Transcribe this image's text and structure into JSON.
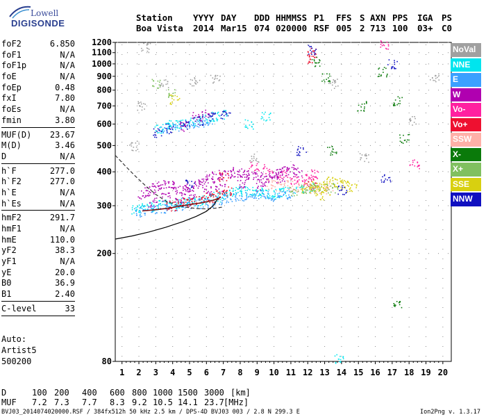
{
  "logo": {
    "top": "Lowell",
    "bottom": "DIGISONDE"
  },
  "header": {
    "labels": [
      "Station",
      "YYYY",
      "DAY",
      "DDD",
      "HHMMSS",
      "P1",
      "FFS",
      "S",
      "AXN",
      "PPS",
      "IGA",
      "PS"
    ],
    "values": [
      "Boa Vista",
      "2014",
      "Mar15",
      "074",
      "020000",
      "RSF",
      "005",
      "2",
      "713",
      "100",
      "03+",
      "C0"
    ]
  },
  "parameters": [
    {
      "label": "foF2",
      "value": "6.850"
    },
    {
      "label": "foF1",
      "value": "N/A"
    },
    {
      "label": "foF1p",
      "value": "N/A"
    },
    {
      "label": "foE",
      "value": "N/A"
    },
    {
      "label": "foEp",
      "value": "0.48"
    },
    {
      "label": "fxI",
      "value": "7.80"
    },
    {
      "label": "foEs",
      "value": "N/A"
    },
    {
      "label": "fmin",
      "value": "3.80"
    },
    {
      "sep": true
    },
    {
      "label": "MUF(D)",
      "value": "23.67"
    },
    {
      "label": "M(D)",
      "value": "3.46"
    },
    {
      "label": "D",
      "value": "N/A"
    },
    {
      "sep": true
    },
    {
      "label": "h`F",
      "value": "277.0"
    },
    {
      "label": "h`F2",
      "value": "277.0"
    },
    {
      "label": "h`E",
      "value": "N/A"
    },
    {
      "label": "h`Es",
      "value": "N/A"
    },
    {
      "sep": true
    },
    {
      "label": "hmF2",
      "value": "291.7"
    },
    {
      "label": "hmF1",
      "value": "N/A"
    },
    {
      "label": "hmE",
      "value": "110.0"
    },
    {
      "label": "yF2",
      "value": "38.3"
    },
    {
      "label": "yF1",
      "value": "N/A"
    },
    {
      "label": "yE",
      "value": "20.0"
    },
    {
      "label": "B0",
      "value": "36.9"
    },
    {
      "label": "B1",
      "value": "2.40"
    },
    {
      "sep": true
    },
    {
      "label": "C-level",
      "value": "33"
    },
    {
      "sep": true
    }
  ],
  "auto": [
    "Auto:",
    "Artist5",
    "500200"
  ],
  "legend": [
    {
      "label": "NoVal",
      "color": "#a0a0a0"
    },
    {
      "label": "NNE",
      "color": "#00e5ee"
    },
    {
      "label": "E",
      "color": "#3aa0ff"
    },
    {
      "label": "W",
      "color": "#b000b0"
    },
    {
      "label": "Vo-",
      "color": "#ff20a0"
    },
    {
      "label": "Vo+",
      "color": "#ee1030"
    },
    {
      "label": "SSW",
      "color": "#ffb0a8"
    },
    {
      "label": "X-",
      "color": "#0a7a0a"
    },
    {
      "label": "X+",
      "color": "#80c060"
    },
    {
      "label": "SSE",
      "color": "#d8d010"
    },
    {
      "label": "NNW",
      "color": "#1010c0"
    }
  ],
  "d_muf": {
    "d_label": "D",
    "d_values": [
      "100",
      "200",
      "400",
      "600",
      "800",
      "1000",
      "1500",
      "3000"
    ],
    "d_unit": "[km]",
    "muf_label": "MUF",
    "muf_values": [
      "7.2",
      "7.3",
      "7.7",
      "8.3",
      "9.2",
      "10.5",
      "14.1",
      "23.7"
    ],
    "muf_unit": "[MHz]"
  },
  "footer": "BVJ03_2014074020000.RSF / 384fx512h 50 kHz 2.5 km / DPS-4D BVJ03 003 / 2.8 N 299.3 E",
  "version": "Ion2Png v. 1.3.17",
  "chart_data": {
    "type": "scatter",
    "x_ticks": [
      1,
      2,
      3,
      4,
      5,
      6,
      7,
      8,
      9,
      10,
      11,
      12,
      13,
      14,
      15,
      16,
      17,
      18,
      19,
      20
    ],
    "y_ticks": [
      80,
      200,
      300,
      400,
      500,
      600,
      700,
      800,
      900,
      1000,
      1100,
      1200
    ],
    "xlim": [
      0.6,
      20.5
    ],
    "ylim": [
      80,
      1200
    ],
    "y_scale": "log",
    "grid": true,
    "legend_position": "right",
    "series": [
      {
        "color": "#00e5ee",
        "points": [
          [
            1.8,
            290
          ],
          [
            2.2,
            296
          ],
          [
            2.6,
            298
          ],
          [
            3,
            300
          ],
          [
            3.4,
            302
          ],
          [
            3.8,
            305
          ],
          [
            4.2,
            306
          ],
          [
            4.6,
            308
          ],
          [
            5,
            310
          ],
          [
            5.4,
            313
          ],
          [
            5.8,
            316
          ],
          [
            6.2,
            320
          ],
          [
            6.6,
            324
          ],
          [
            7,
            330
          ],
          [
            7.4,
            336
          ],
          [
            7.8,
            340
          ],
          [
            8.2,
            340
          ],
          [
            8.6,
            338
          ],
          [
            9,
            336
          ],
          [
            9.4,
            334
          ],
          [
            9.8,
            332
          ],
          [
            10.2,
            334
          ],
          [
            10.6,
            338
          ],
          [
            3.2,
            580
          ],
          [
            3.6,
            590
          ],
          [
            4,
            596
          ],
          [
            4.5,
            605
          ],
          [
            5.2,
            615
          ],
          [
            5.8,
            630
          ],
          [
            6.4,
            640
          ],
          [
            6.9,
            650
          ],
          [
            8.5,
            600
          ],
          [
            9.5,
            640
          ],
          [
            11.5,
            345
          ],
          [
            12.3,
            350
          ],
          [
            13.8,
            82
          ]
        ]
      },
      {
        "color": "#3aa0ff",
        "points": [
          [
            1.9,
            285
          ],
          [
            2.5,
            290
          ],
          [
            3.1,
            292
          ],
          [
            3.7,
            294
          ],
          [
            4.3,
            298
          ],
          [
            4.9,
            302
          ],
          [
            5.5,
            306
          ],
          [
            6.1,
            310
          ],
          [
            6.7,
            316
          ],
          [
            7.3,
            322
          ],
          [
            7.9,
            326
          ],
          [
            8.5,
            330
          ],
          [
            9.1,
            330
          ],
          [
            9.7,
            326
          ],
          [
            10.3,
            328
          ],
          [
            10.9,
            332
          ],
          [
            3.5,
            578
          ],
          [
            4.2,
            585
          ],
          [
            5,
            600
          ],
          [
            5.6,
            612
          ],
          [
            6.1,
            620
          ]
        ]
      },
      {
        "color": "#b000b0",
        "points": [
          [
            2.2,
            330
          ],
          [
            2.6,
            340
          ],
          [
            3,
            350
          ],
          [
            3.4,
            360
          ],
          [
            3.8,
            355
          ],
          [
            4.2,
            350
          ],
          [
            4.6,
            345
          ],
          [
            5,
            352
          ],
          [
            5.4,
            360
          ],
          [
            5.8,
            370
          ],
          [
            6.2,
            380
          ],
          [
            6.6,
            385
          ],
          [
            7,
            390
          ],
          [
            7.4,
            395
          ],
          [
            7.8,
            400
          ],
          [
            8.2,
            395
          ],
          [
            8.6,
            390
          ],
          [
            9,
            385
          ],
          [
            9.4,
            380
          ],
          [
            9.8,
            385
          ],
          [
            10.2,
            395
          ],
          [
            10.6,
            405
          ],
          [
            11,
            410
          ],
          [
            11.4,
            400
          ],
          [
            2.8,
            310
          ],
          [
            3.6,
            325
          ],
          [
            4.4,
            320
          ],
          [
            5.2,
            330
          ],
          [
            6,
            340
          ],
          [
            6.8,
            350
          ],
          [
            8,
            360
          ],
          [
            9.2,
            355
          ],
          [
            10.4,
            375
          ],
          [
            4.6,
            590
          ],
          [
            5.4,
            640
          ],
          [
            6,
            660
          ]
        ]
      },
      {
        "color": "#ff20a0",
        "points": [
          [
            8.8,
            420
          ],
          [
            9.6,
            410
          ],
          [
            10.5,
            390
          ],
          [
            11.2,
            375
          ],
          [
            11.6,
            370
          ],
          [
            12.1,
            385
          ],
          [
            12.4,
            392
          ],
          [
            16.5,
            1180
          ],
          [
            18.3,
            430
          ]
        ]
      },
      {
        "color": "#ee1030",
        "points": [
          [
            3.9,
            300
          ],
          [
            4.5,
            310
          ],
          [
            5,
            308
          ],
          [
            5.6,
            316
          ],
          [
            6.2,
            322
          ],
          [
            6.8,
            330
          ],
          [
            7.2,
            340
          ],
          [
            12.2,
            1100
          ],
          [
            12.2,
            1050
          ],
          [
            12.2,
            360
          ],
          [
            7,
            385
          ]
        ]
      },
      {
        "color": "#ffb0a8",
        "points": [
          [
            9.8,
            360
          ],
          [
            10.4,
            355
          ],
          [
            11,
            358
          ],
          [
            11.6,
            352
          ],
          [
            12.2,
            348
          ],
          [
            12.8,
            346
          ],
          [
            13.2,
            350
          ]
        ]
      },
      {
        "color": "#0a7a0a",
        "points": [
          [
            12.4,
            1020
          ],
          [
            13,
            890
          ],
          [
            15.2,
            700
          ],
          [
            16.4,
            935
          ],
          [
            17.3,
            730
          ],
          [
            17.3,
            130
          ],
          [
            17.7,
            530
          ],
          [
            13.4,
            480
          ]
        ]
      },
      {
        "color": "#80c060",
        "points": [
          [
            11.2,
            340
          ],
          [
            11.8,
            345
          ],
          [
            12.3,
            352
          ],
          [
            12.9,
            348
          ],
          [
            13.5,
            350
          ],
          [
            3,
            850
          ],
          [
            4,
            780
          ]
        ]
      },
      {
        "color": "#d8d010",
        "points": [
          [
            11.9,
            350
          ],
          [
            12.4,
            355
          ],
          [
            12.9,
            360
          ],
          [
            13.3,
            372
          ],
          [
            13.8,
            365
          ],
          [
            14.2,
            358
          ],
          [
            14.6,
            350
          ],
          [
            13,
            330
          ],
          [
            12.6,
            340
          ],
          [
            4.1,
            740
          ]
        ]
      },
      {
        "color": "#1010c0",
        "points": [
          [
            3.1,
            560
          ],
          [
            3.8,
            578
          ],
          [
            4.7,
            600
          ],
          [
            5.5,
            620
          ],
          [
            6.3,
            640
          ],
          [
            7.1,
            650
          ],
          [
            12.2,
            1130
          ],
          [
            16.6,
            380
          ],
          [
            17,
            1000
          ],
          [
            14,
            345
          ],
          [
            11.6,
            480
          ],
          [
            5,
            360
          ]
        ]
      },
      {
        "color": "#a0a0a0",
        "points": [
          [
            1.7,
            500
          ],
          [
            2.1,
            700
          ],
          [
            2.4,
            1150
          ],
          [
            3.5,
            850
          ],
          [
            5.3,
            860
          ],
          [
            6.5,
            880
          ],
          [
            8.8,
            450
          ],
          [
            13.5,
            850
          ],
          [
            15.3,
            450
          ],
          [
            18.2,
            620
          ],
          [
            19.5,
            900
          ]
        ]
      }
    ],
    "profile_dashed": [
      [
        0.6,
        460
      ],
      [
        1.2,
        420
      ],
      [
        1.8,
        385
      ],
      [
        2.4,
        355
      ],
      [
        3,
        330
      ],
      [
        3.6,
        312
      ],
      [
        4.2,
        302
      ],
      [
        4.8,
        296
      ],
      [
        5.4,
        293
      ],
      [
        6,
        292
      ],
      [
        6.6,
        294
      ],
      [
        7,
        297
      ]
    ],
    "profile_solid": [
      [
        0.6,
        226
      ],
      [
        1.6,
        232
      ],
      [
        2.6,
        240
      ],
      [
        3.6,
        250
      ],
      [
        4.6,
        262
      ],
      [
        5.4,
        274
      ],
      [
        6,
        286
      ],
      [
        6.4,
        300
      ],
      [
        6.7,
        320
      ]
    ],
    "trace_dark": [
      [
        2.2,
        287
      ],
      [
        3,
        290
      ],
      [
        3.8,
        294
      ],
      [
        4.6,
        300
      ],
      [
        5.2,
        304
      ],
      [
        5.8,
        308
      ],
      [
        6.4,
        314
      ],
      [
        6.85,
        322
      ]
    ]
  }
}
